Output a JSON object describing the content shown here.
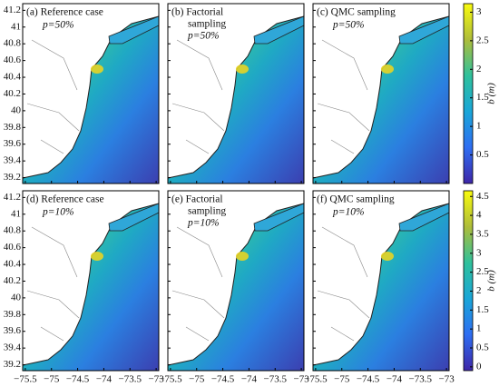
{
  "panels": [
    {
      "label": "(a) Reference case",
      "subtitle": "p=50%"
    },
    {
      "label": "(b) Factorial",
      "label2": "sampling",
      "subtitle": "p=50%"
    },
    {
      "label": "(c) QMC sampling",
      "subtitle": "p=50%"
    },
    {
      "label": "(d) Reference case",
      "subtitle": "p=10%"
    },
    {
      "label": "(e) Factorial",
      "label2": "sampling",
      "subtitle": "p=10%"
    },
    {
      "label": "(f) QMC sampling",
      "subtitle": "p=10%"
    }
  ],
  "axes": {
    "xlim": [
      -75.55,
      -72.95
    ],
    "ylim": [
      39.13,
      41.28
    ],
    "xticks": [
      {
        "value": -75.5,
        "label": "−75.5"
      },
      {
        "value": -75,
        "label": "−75"
      },
      {
        "value": -74.5,
        "label": "−74.5"
      },
      {
        "value": -74,
        "label": "−74"
      },
      {
        "value": -73.5,
        "label": "−73.5"
      },
      {
        "value": -73,
        "label": "−73"
      }
    ],
    "yticks": [
      39.2,
      39.4,
      39.6,
      39.8,
      40,
      40.2,
      40.4,
      40.6,
      40.8,
      41,
      41.2
    ]
  },
  "colorbars": [
    {
      "label": "b (m)",
      "lim": [
        0,
        3.15
      ],
      "ticks": [
        0.5,
        1,
        1.5,
        2,
        2.5,
        3
      ]
    },
    {
      "label": "b (m)",
      "lim": [
        -0.1,
        4.65
      ],
      "ticks": [
        0,
        0.5,
        1,
        1.5,
        2,
        2.5,
        3,
        3.5,
        4,
        4.5
      ]
    }
  ]
}
